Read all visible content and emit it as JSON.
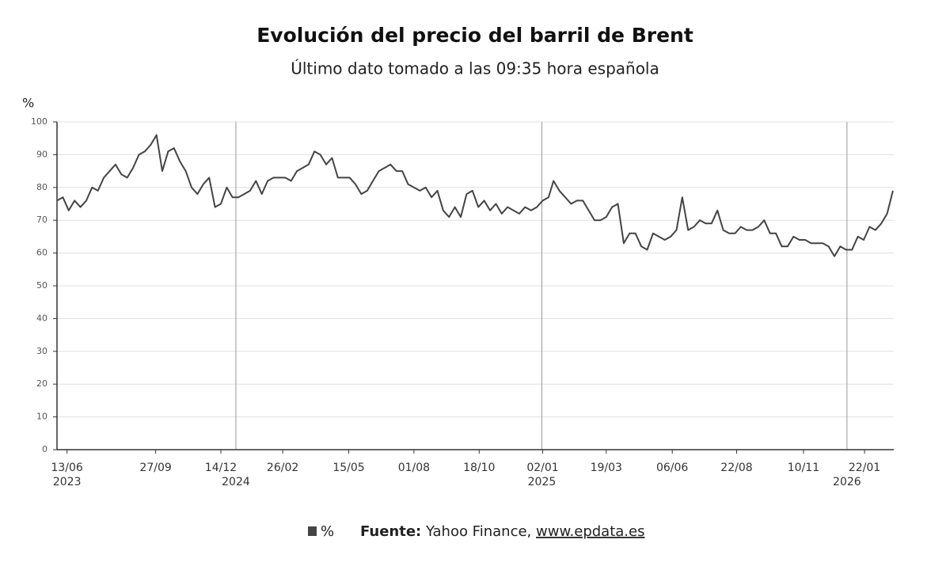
{
  "chart_data": {
    "type": "line",
    "title": "Evolución del precio del barril de Brent",
    "subtitle": "Último dato tomado a las 09:35 hora española",
    "y_label": "%",
    "source_label": "Fuente:",
    "source": "Yahoo Finance,",
    "source_link": "www.epdata.es",
    "x": [
      "2023-06-01",
      "2023-06-08",
      "2023-06-15",
      "2023-06-22",
      "2023-06-29",
      "2023-07-06",
      "2023-07-13",
      "2023-07-20",
      "2023-07-27",
      "2023-08-03",
      "2023-08-10",
      "2023-08-17",
      "2023-08-24",
      "2023-08-31",
      "2023-09-07",
      "2023-09-14",
      "2023-09-21",
      "2023-09-28",
      "2023-10-05",
      "2023-10-12",
      "2023-10-19",
      "2023-10-26",
      "2023-11-02",
      "2023-11-09",
      "2023-11-16",
      "2023-11-23",
      "2023-11-30",
      "2023-12-07",
      "2023-12-14",
      "2023-12-21",
      "2023-12-28",
      "2024-01-04",
      "2024-01-11",
      "2024-01-18",
      "2024-01-25",
      "2024-02-01",
      "2024-02-08",
      "2024-02-15",
      "2024-02-22",
      "2024-02-29",
      "2024-03-07",
      "2024-03-14",
      "2024-03-21",
      "2024-03-28",
      "2024-04-04",
      "2024-04-11",
      "2024-04-18",
      "2024-04-25",
      "2024-05-02",
      "2024-05-09",
      "2024-05-16",
      "2024-05-23",
      "2024-05-30",
      "2024-06-06",
      "2024-06-13",
      "2024-06-20",
      "2024-06-27",
      "2024-07-04",
      "2024-07-11",
      "2024-07-18",
      "2024-07-25",
      "2024-08-01",
      "2024-08-08",
      "2024-08-15",
      "2024-08-22",
      "2024-08-29",
      "2024-09-05",
      "2024-09-12",
      "2024-09-19",
      "2024-09-26",
      "2024-10-03",
      "2024-10-10",
      "2024-10-17",
      "2024-10-24",
      "2024-10-31",
      "2024-11-07",
      "2024-11-14",
      "2024-11-21",
      "2024-11-28",
      "2024-12-05",
      "2024-12-12",
      "2024-12-19",
      "2024-12-26",
      "2025-01-02",
      "2025-01-09",
      "2025-01-15",
      "2025-01-22",
      "2025-01-29",
      "2025-02-05",
      "2025-02-12",
      "2025-02-19",
      "2025-02-26",
      "2025-03-05",
      "2025-03-12",
      "2025-03-19",
      "2025-03-26",
      "2025-04-02",
      "2025-04-09",
      "2025-04-16",
      "2025-04-23",
      "2025-04-30",
      "2025-05-07",
      "2025-05-14",
      "2025-05-21",
      "2025-05-28",
      "2025-06-04",
      "2025-06-11",
      "2025-06-18",
      "2025-06-25",
      "2025-07-02",
      "2025-07-09",
      "2025-07-16",
      "2025-07-23",
      "2025-07-30",
      "2025-08-06",
      "2025-08-13",
      "2025-08-20",
      "2025-08-27",
      "2025-09-03",
      "2025-09-10",
      "2025-09-17",
      "2025-09-24",
      "2025-10-01",
      "2025-10-08",
      "2025-10-15",
      "2025-10-22",
      "2025-10-29",
      "2025-11-05",
      "2025-11-12",
      "2025-11-19",
      "2025-11-26",
      "2025-12-03",
      "2025-12-10",
      "2025-12-17",
      "2025-12-24",
      "2025-12-31",
      "2026-01-07",
      "2026-01-14",
      "2026-01-21",
      "2026-01-28",
      "2026-02-04",
      "2026-02-11",
      "2026-02-18",
      "2026-02-25"
    ],
    "series": [
      {
        "name": "%",
        "color": "#444444",
        "values": [
          76,
          77,
          73,
          76,
          74,
          76,
          80,
          79,
          83,
          85,
          87,
          84,
          83,
          86,
          90,
          91,
          93,
          96,
          85,
          91,
          92,
          88,
          85,
          80,
          78,
          81,
          83,
          74,
          75,
          80,
          77,
          77,
          78,
          79,
          82,
          78,
          82,
          83,
          83,
          83,
          82,
          85,
          86,
          87,
          91,
          90,
          87,
          89,
          83,
          83,
          83,
          81,
          78,
          79,
          82,
          85,
          86,
          87,
          85,
          85,
          81,
          80,
          79,
          80,
          77,
          79,
          73,
          71,
          74,
          71,
          78,
          79,
          74,
          76,
          73,
          75,
          72,
          74,
          73,
          72,
          74,
          73,
          74,
          76,
          77,
          82,
          79,
          77,
          75,
          76,
          76,
          73,
          70,
          70,
          71,
          74,
          75,
          63,
          66,
          66,
          62,
          61,
          66,
          65,
          64,
          65,
          67,
          77,
          67,
          68,
          70,
          69,
          69,
          73,
          67,
          66,
          66,
          68,
          67,
          67,
          68,
          70,
          66,
          66,
          62,
          62,
          65,
          64,
          64,
          63,
          63,
          63,
          62,
          59,
          62,
          61,
          61,
          65,
          64,
          68,
          67,
          69,
          72,
          79
        ]
      }
    ],
    "xlim": [
      "2023-06-01",
      "2026-02-26"
    ],
    "xticks": [
      {
        "value": "2023-06-13",
        "label": "13/06"
      },
      {
        "value": "2023-09-27",
        "label": "27/09"
      },
      {
        "value": "2023-12-14",
        "label": "14/12"
      },
      {
        "value": "2024-02-26",
        "label": "26/02"
      },
      {
        "value": "2024-05-15",
        "label": "15/05"
      },
      {
        "value": "2024-08-01",
        "label": "01/08"
      },
      {
        "value": "2024-10-18",
        "label": "18/10"
      },
      {
        "value": "2025-01-02",
        "label": "02/01"
      },
      {
        "value": "2025-03-19",
        "label": "19/03"
      },
      {
        "value": "2025-06-06",
        "label": "06/06"
      },
      {
        "value": "2025-08-22",
        "label": "22/08"
      },
      {
        "value": "2025-11-10",
        "label": "10/11"
      },
      {
        "value": "2026-01-22",
        "label": "22/01"
      }
    ],
    "year_labels": [
      {
        "value": "2023-06-13",
        "label": "2023"
      },
      {
        "value": "2024-01-01",
        "label": "2024"
      },
      {
        "value": "2025-01-01",
        "label": "2025"
      },
      {
        "value": "2026-01-01",
        "label": "2026"
      }
    ],
    "ylim": [
      0,
      100
    ],
    "yticks": [
      0,
      10,
      20,
      30,
      40,
      50,
      60,
      70,
      80,
      90,
      100
    ],
    "grid": true
  }
}
